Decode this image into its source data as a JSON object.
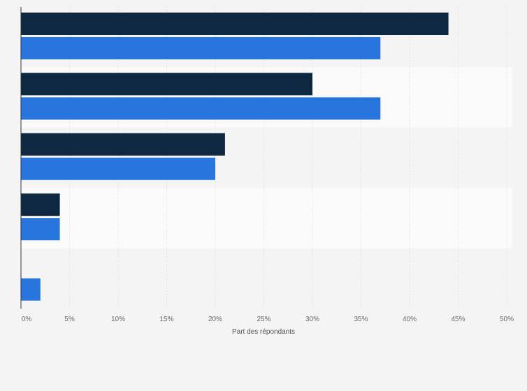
{
  "colors": {
    "series_dark": "#0e2841",
    "series_blue": "#2876dd",
    "band_odd": "#f4f4f5",
    "band_even": "#fafafa",
    "grid": "#dcdcdc",
    "axis": "#333333"
  },
  "chart_data": {
    "type": "bar",
    "orientation": "horizontal",
    "categories": [
      "",
      "",
      "",
      "",
      ""
    ],
    "series": [
      {
        "values": [
          44,
          30,
          21,
          4,
          0
        ]
      },
      {
        "values": [
          37,
          37,
          20,
          4,
          2
        ]
      }
    ],
    "xlabel": "Part des répondants",
    "ylabel": "",
    "xlim": [
      0,
      50
    ],
    "ticks": [
      "0%",
      "5%",
      "10%",
      "15%",
      "20%",
      "25%",
      "30%",
      "35%",
      "40%",
      "45%",
      "50%"
    ],
    "grid": true,
    "legend": "none"
  }
}
